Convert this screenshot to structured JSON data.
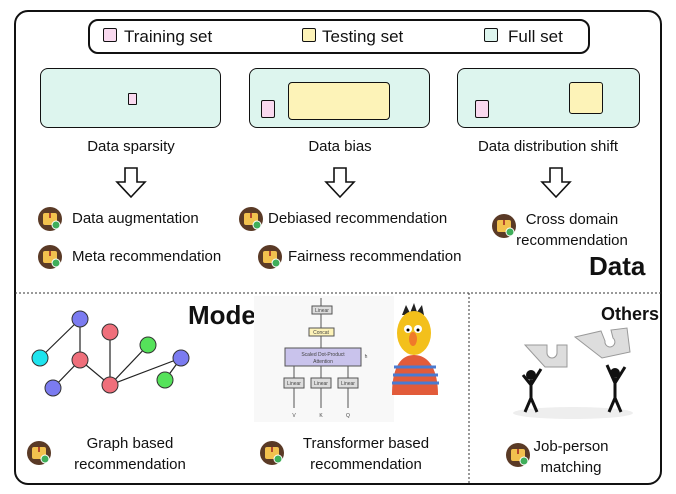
{
  "legend": {
    "training": "Training set",
    "testing": "Testing set",
    "full": "Full set"
  },
  "colors": {
    "training": "#f9d9ef",
    "testing": "#fdf3b8",
    "full": "#ddf5ee"
  },
  "data_section": {
    "title": "Data",
    "problems": [
      "Data sparsity",
      "Data bias",
      "Data distribution shift"
    ],
    "solutions": {
      "sparsity": [
        "Data augmentation",
        "Meta recommendation"
      ],
      "bias": [
        "Debiased recommendation",
        "Fairness recommendation"
      ],
      "shift": [
        "Cross domain",
        "recommendation"
      ]
    }
  },
  "model_section": {
    "title": "Model",
    "transformer_figure": {
      "linear": "Linear",
      "concat": "Concat",
      "attention": [
        "Scaled Dot-Product",
        "Attention"
      ],
      "h": "h",
      "inputs": [
        "V",
        "K",
        "Q"
      ]
    },
    "graph": [
      "Graph based",
      "recommendation"
    ],
    "transformer": [
      "Transformer based",
      "recommendation"
    ]
  },
  "others_section": {
    "title": "Others",
    "job": [
      "Job-person",
      "matching"
    ]
  }
}
